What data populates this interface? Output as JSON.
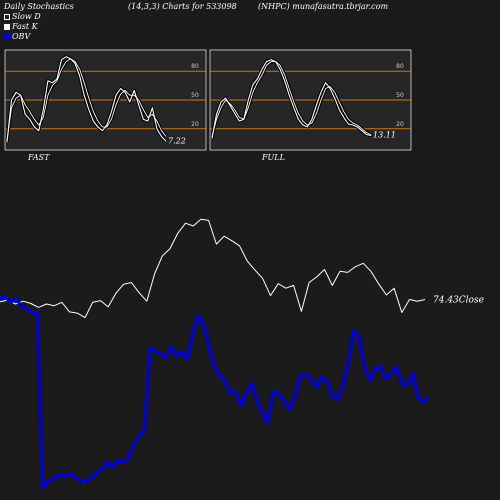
{
  "header": {
    "left": "Daily Stochastics",
    "center": "(14,3,3) Charts for 533098",
    "right": "(NHPC) munafasutra.tbrjar.com"
  },
  "legend": [
    {
      "label": "Slow  D",
      "swatch": "outline"
    },
    {
      "label": "Fast K",
      "swatch": "filled"
    },
    {
      "label": "OBV",
      "swatch": "blue"
    }
  ],
  "colors": {
    "background": "#1b1b1b",
    "panel": "#262626",
    "refline": "#c8781e",
    "obv": "#0000dd",
    "price": "#ffffff"
  },
  "chart_data": [
    {
      "type": "line",
      "name": "fast-stochastics",
      "label": "FAST",
      "ylim": [
        0,
        100
      ],
      "yticks": [
        20,
        50,
        80
      ],
      "reference_lines": [
        20,
        50,
        80
      ],
      "last_value_label": "7.22",
      "series": [
        {
          "name": "Fast K",
          "values": [
            6,
            50,
            58,
            55,
            35,
            30,
            22,
            18,
            40,
            70,
            68,
            72,
            92,
            95,
            93,
            88,
            75,
            55,
            40,
            28,
            22,
            18,
            24,
            38,
            55,
            62,
            58,
            48,
            60,
            45,
            30,
            28,
            42,
            20,
            12,
            7
          ]
        },
        {
          "name": "Slow  D",
          "values": [
            8,
            42,
            52,
            55,
            45,
            38,
            30,
            24,
            32,
            55,
            65,
            70,
            82,
            90,
            93,
            90,
            82,
            68,
            52,
            38,
            28,
            22,
            22,
            30,
            45,
            56,
            60,
            55,
            55,
            50,
            40,
            32,
            35,
            28,
            18,
            12
          ]
        }
      ]
    },
    {
      "type": "line",
      "name": "full-stochastics",
      "label": "FULL",
      "ylim": [
        0,
        100
      ],
      "yticks": [
        20,
        50,
        80
      ],
      "reference_lines": [
        20,
        50,
        80
      ],
      "last_value_label": "13.11",
      "series": [
        {
          "name": "Fast K",
          "values": [
            10,
            35,
            48,
            52,
            44,
            36,
            28,
            30,
            50,
            66,
            72,
            82,
            90,
            92,
            90,
            82,
            70,
            55,
            42,
            30,
            24,
            22,
            30,
            45,
            58,
            68,
            62,
            52,
            40,
            32,
            25,
            24,
            22,
            18,
            14,
            13
          ]
        },
        {
          "name": "Slow  D",
          "values": [
            12,
            30,
            42,
            50,
            46,
            40,
            32,
            30,
            42,
            58,
            68,
            76,
            86,
            90,
            90,
            86,
            76,
            62,
            48,
            36,
            28,
            24,
            26,
            36,
            50,
            62,
            64,
            58,
            48,
            38,
            30,
            26,
            24,
            20,
            16,
            14
          ]
        }
      ]
    },
    {
      "type": "line",
      "name": "price-obv",
      "last_price_label": "74.43",
      "last_price_suffix": "Close",
      "series": [
        {
          "name": "Close",
          "values": [
            74.0,
            74.3,
            73.6,
            74.1,
            73.7,
            73.0,
            73.6,
            73.3,
            73.9,
            72.2,
            72.0,
            71.2,
            73.9,
            74.2,
            73.1,
            75.5,
            77.1,
            77.4,
            75.6,
            74.1,
            78.9,
            82.1,
            83.4,
            86.1,
            87.9,
            87.4,
            88.6,
            88.4,
            84.2,
            85.6,
            84.8,
            83.9,
            81.2,
            79.6,
            78.1,
            75.1,
            77.2,
            76.4,
            76.9,
            72.3,
            77.4,
            78.4,
            79.7,
            76.9,
            79.4,
            79.2,
            80.2,
            80.8,
            79.4,
            77.2,
            75.2,
            76.4,
            72.1,
            74.4,
            74.1,
            74.4
          ]
        },
        {
          "name": "OBV",
          "values": [
            74.6,
            74.8,
            73.9,
            74.6,
            73.2,
            72.6,
            72.1,
            72.0,
            41.0,
            42.2,
            42.7,
            43.4,
            43.1,
            43.7,
            42.9,
            42.4,
            42.1,
            42.8,
            43.7,
            44.3,
            45.7,
            44.7,
            45.9,
            45.5,
            46.3,
            48.7,
            50.2,
            51.4,
            65.8,
            65.3,
            64.7,
            64.1,
            66.0,
            64.3,
            65.2,
            63.8,
            68.5,
            71.5,
            70.0,
            66.1,
            62.6,
            60.8,
            60.1,
            57.8,
            58.1,
            55.6,
            57.9,
            59.5,
            56.3,
            54.3,
            52.5,
            58.1,
            57.7,
            56.5,
            54.9,
            57.0,
            60.8,
            61.2,
            60.4,
            58.9,
            60.6,
            60.0,
            57.3,
            56.6,
            59.3,
            63.1,
            68.9,
            67.6,
            62.6,
            60.1,
            62.0,
            62.6,
            60.3,
            61.2,
            62.5,
            59.5,
            59.3,
            61.3,
            57.1,
            56.2,
            57.0
          ]
        }
      ]
    }
  ],
  "panel_labels": {
    "fast": "FAST",
    "full": "FULL"
  }
}
